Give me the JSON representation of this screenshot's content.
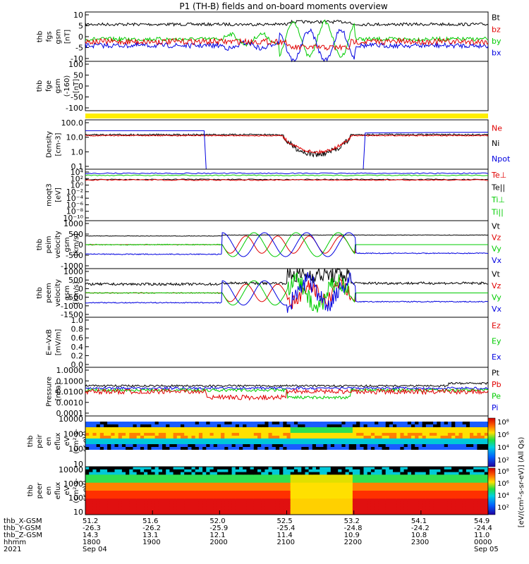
{
  "title": "P1 (TH-B) fields and on-board moments overview",
  "chart_data": {
    "type": "line",
    "title": "P1 (TH-B) fields and on-board moments overview",
    "x_axis": {
      "row_labels": [
        "thb_X-GSM",
        "thb_Y-GSM",
        "thb_Z-GSM",
        "hhmm",
        "2021"
      ],
      "ticks": [
        {
          "x": [
            "51.2",
            "-26.3",
            "14.3",
            "1800",
            "Sep 04"
          ]
        },
        {
          "x": [
            "51.6",
            "-26.2",
            "13.1",
            "1900",
            ""
          ]
        },
        {
          "x": [
            "52.0",
            "-25.9",
            "12.1",
            "2000",
            ""
          ]
        },
        {
          "x": [
            "52.5",
            "-25.4",
            "11.4",
            "2100",
            ""
          ]
        },
        {
          "x": [
            "53.2",
            "-24.8",
            "10.9",
            "2200",
            ""
          ]
        },
        {
          "x": [
            "54.1",
            "-24.2",
            "10.8",
            "2300",
            ""
          ]
        },
        {
          "x": [
            "54.9",
            "-24.4",
            "11.0",
            "0000",
            "Sep 05"
          ]
        }
      ]
    },
    "panels": [
      {
        "id": "fgs",
        "ylabel": [
          "thb",
          "fgs",
          "gsm",
          "[nT]"
        ],
        "yticks": [
          "10",
          "5",
          "0",
          "-5",
          "-10"
        ],
        "ylim": [
          -10,
          10
        ],
        "legend": [
          {
            "name": "Bt",
            "color": "#000000"
          },
          {
            "name": "bz",
            "color": "#e00000"
          },
          {
            "name": "by",
            "color": "#00cc00"
          },
          {
            "name": "bx",
            "color": "#0000e0"
          }
        ]
      },
      {
        "id": "fge",
        "ylabel": [
          "thb",
          "fge",
          "gsm",
          "(-160)",
          "[nT]"
        ],
        "yticks": [
          "100",
          "50",
          "0",
          "-50",
          "-100"
        ],
        "ylim": [
          -130,
          130
        ],
        "legend": []
      },
      {
        "id": "density",
        "ylabel": [
          "Density",
          "[cm-3]"
        ],
        "yticks": [
          "100.0",
          "10.0",
          "1.0",
          "0.1"
        ],
        "log": true,
        "legend": [
          {
            "name": "Ne",
            "color": "#e00000"
          },
          {
            "name": "Ni",
            "color": "#000000"
          },
          {
            "name": "Npot",
            "color": "#0000e0"
          }
        ]
      },
      {
        "id": "moqt3",
        "ylabel": [
          "moqt3",
          "[eV]"
        ],
        "yticks": [
          "10⁴",
          "10²",
          "10⁰",
          "10⁻²",
          "10⁻⁴",
          "10⁻⁶",
          "10⁻⁸",
          "10⁻¹⁰"
        ],
        "log": true,
        "legend": [
          {
            "name": "Te⊥",
            "color": "#e00000"
          },
          {
            "name": "Te||",
            "color": "#000000"
          },
          {
            "name": "Ti⊥",
            "color": "#00cc00"
          },
          {
            "name": "Ti||",
            "color": "#00cc00"
          }
        ]
      },
      {
        "id": "peim",
        "ylabel": [
          "thb",
          "peim",
          "velocity",
          "gsm",
          "[km/s]"
        ],
        "yticks": [
          "1000",
          "500",
          "0",
          "-500",
          "-1000"
        ],
        "ylim": [
          -1000,
          1000
        ],
        "legend": [
          {
            "name": "Vt",
            "color": "#000000"
          },
          {
            "name": "Vz",
            "color": "#e00000"
          },
          {
            "name": "Vy",
            "color": "#00cc00"
          },
          {
            "name": "Vx",
            "color": "#0000e0"
          }
        ]
      },
      {
        "id": "peem",
        "ylabel": [
          "thb",
          "peem",
          "velocity",
          "gsm",
          "[km/s]"
        ],
        "yticks": [
          "1000",
          "500",
          "0",
          "-500",
          "-1000",
          "-1500"
        ],
        "ylim": [
          -1500,
          1500
        ],
        "legend": [
          {
            "name": "Vt",
            "color": "#000000"
          },
          {
            "name": "Vz",
            "color": "#e00000"
          },
          {
            "name": "Vy",
            "color": "#00cc00"
          },
          {
            "name": "Vx",
            "color": "#0000e0"
          }
        ]
      },
      {
        "id": "efield",
        "ylabel": [
          "E=-VxB",
          "[mV/m]"
        ],
        "yticks": [
          "1.0",
          "0.8",
          "0.6",
          "0.4",
          "0.2",
          "0.0"
        ],
        "ylim": [
          0,
          1
        ],
        "legend": [
          {
            "name": "Ez",
            "color": "#e00000"
          },
          {
            "name": "Ey",
            "color": "#00cc00"
          },
          {
            "name": "Ex",
            "color": "#0000e0"
          }
        ]
      },
      {
        "id": "pressure",
        "ylabel": [
          "Pressure",
          "[nPa]"
        ],
        "yticks": [
          "1.0000",
          "0.1000",
          "0.0100",
          "0.0010",
          "0.0001"
        ],
        "log": true,
        "legend": [
          {
            "name": "Pt",
            "color": "#000000"
          },
          {
            "name": "Pb",
            "color": "#e00000"
          },
          {
            "name": "Pe",
            "color": "#00cc00"
          },
          {
            "name": "Pi",
            "color": "#0000e0"
          }
        ]
      },
      {
        "id": "peir",
        "ylabel": [
          "thb",
          "peir",
          "en",
          "eflux",
          "eV",
          "(cm²-s-",
          "sr-eV)"
        ],
        "yticks": [
          "10000",
          "1000",
          "100",
          "10"
        ],
        "log": true,
        "spectrogram": true
      },
      {
        "id": "peer",
        "ylabel": [
          "thb",
          "peer",
          "en",
          "eflux",
          "eV",
          "(cm²-s-",
          "sr-eV)"
        ],
        "yticks": [
          "10000",
          "1000",
          "100",
          "10"
        ],
        "log": true,
        "spectrogram": true
      }
    ],
    "colorbar": {
      "label": "[eV/(cm²-s-sr-eV)] (All Qs)",
      "ticks": [
        "10⁸",
        "10⁶",
        "10⁴",
        "10²",
        "10⁸",
        "10⁶",
        "10⁴",
        "10²"
      ]
    }
  }
}
